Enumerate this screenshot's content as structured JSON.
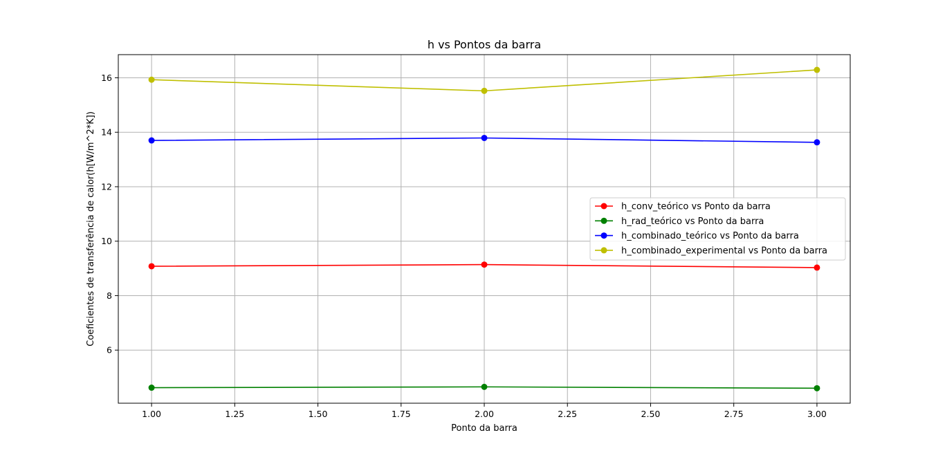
{
  "chart_data": {
    "type": "line",
    "title": "h vs Pontos da barra",
    "xlabel": "Ponto da barra",
    "ylabel": "Coeficientes de transferência de calor(h[W/m^2*K])",
    "xlim": [
      0.9,
      3.1
    ],
    "ylim": [
      4.05,
      16.85
    ],
    "xticks": [
      1.0,
      1.25,
      1.5,
      1.75,
      2.0,
      2.25,
      2.5,
      2.75,
      3.0
    ],
    "xtick_labels": [
      "1.00",
      "1.25",
      "1.50",
      "1.75",
      "2.00",
      "2.25",
      "2.50",
      "2.75",
      "3.00"
    ],
    "yticks": [
      6,
      8,
      10,
      12,
      14,
      16
    ],
    "ytick_labels": [
      "6",
      "8",
      "10",
      "12",
      "14",
      "16"
    ],
    "grid": true,
    "legend_position": "center-right",
    "x": [
      1,
      2,
      3
    ],
    "series": [
      {
        "name": "h_conv_teórico vs Ponto da barra",
        "color": "#ff0000",
        "values": [
          9.08,
          9.14,
          9.03
        ]
      },
      {
        "name": "h_rad_teórico vs Ponto da barra",
        "color": "#008000",
        "values": [
          4.62,
          4.65,
          4.6
        ]
      },
      {
        "name": "h_combinado_teórico vs Ponto da barra",
        "color": "#0000ff",
        "values": [
          13.7,
          13.79,
          13.63
        ]
      },
      {
        "name": "h_combinado_experimental vs Ponto da barra",
        "color": "#bfbf00",
        "values": [
          15.93,
          15.52,
          16.29
        ]
      }
    ]
  }
}
